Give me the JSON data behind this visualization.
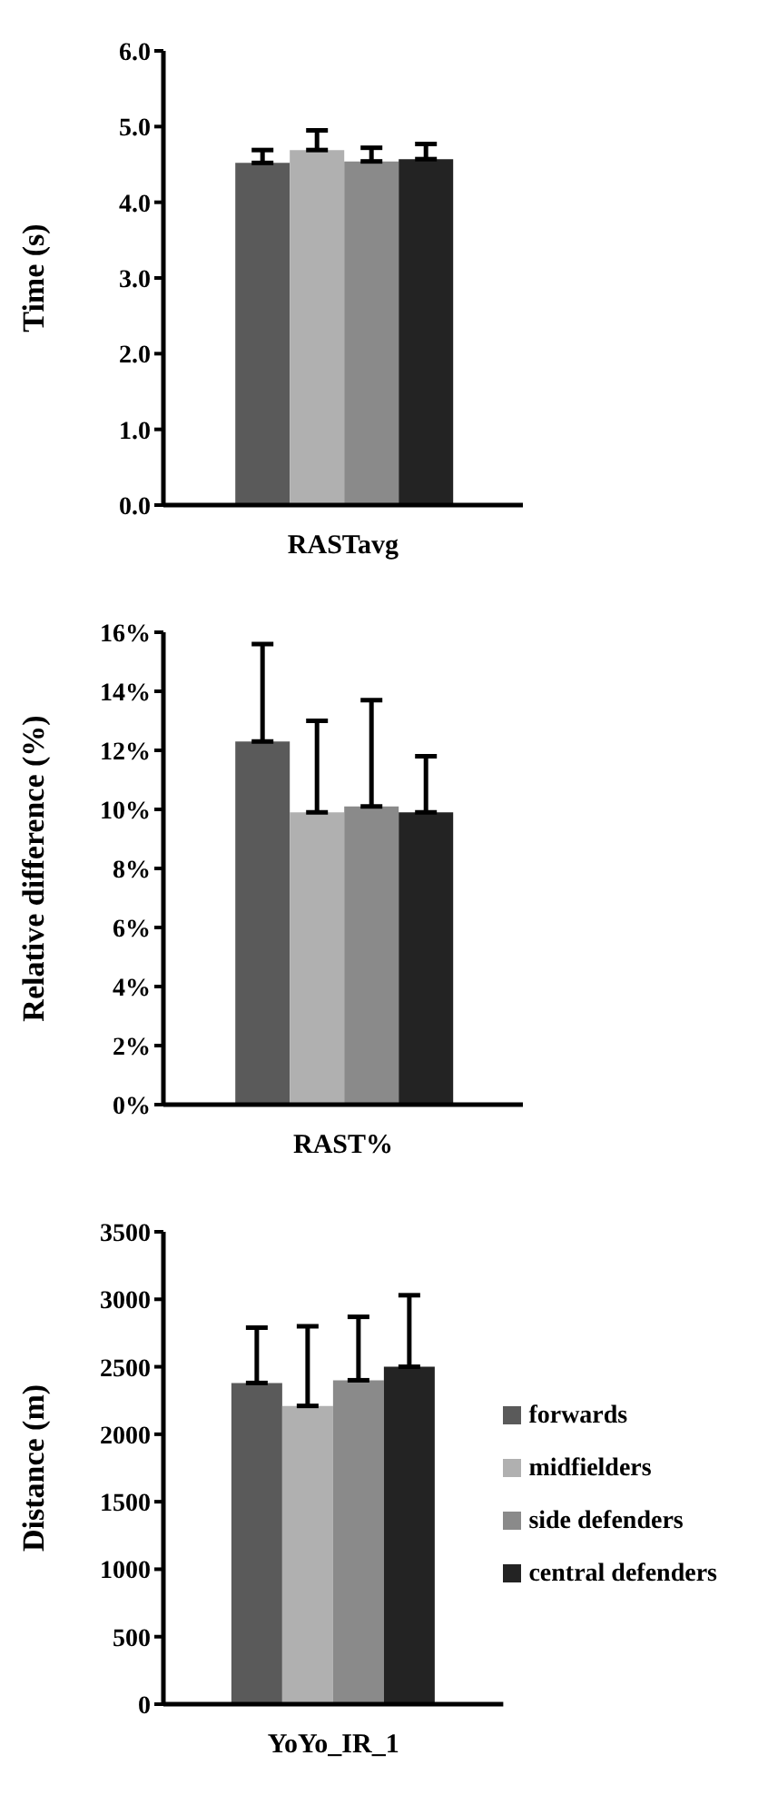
{
  "chart_data": [
    {
      "type": "bar",
      "ylabel": "Time (s)",
      "categories": [
        "RASTavg"
      ],
      "series": [
        {
          "color": "#5a5a5a",
          "values": [
            4.52
          ],
          "errors": [
            [
              4.52,
              4.69
            ]
          ]
        },
        {
          "color": "#b0b0b0",
          "values": [
            4.69
          ],
          "errors": [
            [
              4.69,
              4.95
            ]
          ]
        },
        {
          "color": "#8a8a8a",
          "values": [
            4.54
          ],
          "errors": [
            [
              4.54,
              4.72
            ]
          ]
        },
        {
          "color": "#232323",
          "values": [
            4.57
          ],
          "errors": [
            [
              4.57,
              4.77
            ]
          ]
        }
      ],
      "ylim": [
        0,
        6
      ],
      "yticks": [
        {
          "value": 0,
          "label": "0.0"
        },
        {
          "value": 1,
          "label": "1.0"
        },
        {
          "value": 2,
          "label": "2.0"
        },
        {
          "value": 3,
          "label": "3.0"
        },
        {
          "value": 4,
          "label": "4.0"
        },
        {
          "value": 5,
          "label": "5.0"
        },
        {
          "value": 6,
          "label": "6.0"
        }
      ],
      "grid": false,
      "legend": false
    },
    {
      "type": "bar",
      "ylabel": "Relative difference (%)",
      "categories": [
        "RAST%"
      ],
      "series": [
        {
          "color": "#5a5a5a",
          "values": [
            12.3
          ],
          "errors": [
            [
              12.3,
              15.6
            ]
          ]
        },
        {
          "color": "#b0b0b0",
          "values": [
            9.9
          ],
          "errors": [
            [
              9.9,
              13
            ]
          ]
        },
        {
          "color": "#8a8a8a",
          "values": [
            10.1
          ],
          "errors": [
            [
              10.1,
              13.7
            ]
          ]
        },
        {
          "color": "#232323",
          "values": [
            9.9
          ],
          "errors": [
            [
              9.9,
              11.8
            ]
          ]
        }
      ],
      "ylim": [
        0,
        16
      ],
      "yticks": [
        {
          "value": 0,
          "label": "0%"
        },
        {
          "value": 2,
          "label": "2%"
        },
        {
          "value": 4,
          "label": "4%"
        },
        {
          "value": 6,
          "label": "6%"
        },
        {
          "value": 8,
          "label": "8%"
        },
        {
          "value": 10,
          "label": "10%"
        },
        {
          "value": 12,
          "label": "12%"
        },
        {
          "value": 14,
          "label": "14%"
        },
        {
          "value": 16,
          "label": "16%"
        }
      ],
      "grid": false,
      "legend": false
    },
    {
      "type": "bar",
      "ylabel": "Distance (m)",
      "categories": [
        "YoYo_IR_1"
      ],
      "series": [
        {
          "name": "forwards",
          "color": "#5a5a5a",
          "values": [
            2380
          ],
          "errors": [
            [
              2380,
              2790
            ]
          ]
        },
        {
          "name": "midfielders",
          "color": "#b0b0b0",
          "values": [
            2210
          ],
          "errors": [
            [
              2210,
              2800
            ]
          ]
        },
        {
          "name": "side defenders",
          "color": "#8a8a8a",
          "values": [
            2400
          ],
          "errors": [
            [
              2400,
              2870
            ]
          ]
        },
        {
          "name": "central defenders",
          "color": "#232323",
          "values": [
            2500
          ],
          "errors": [
            [
              2500,
              3030
            ]
          ]
        }
      ],
      "ylim": [
        0,
        3500
      ],
      "yticks": [
        0,
        500,
        1000,
        1500,
        2000,
        2500,
        3000,
        3500
      ],
      "grid": false,
      "legend": "right"
    }
  ]
}
